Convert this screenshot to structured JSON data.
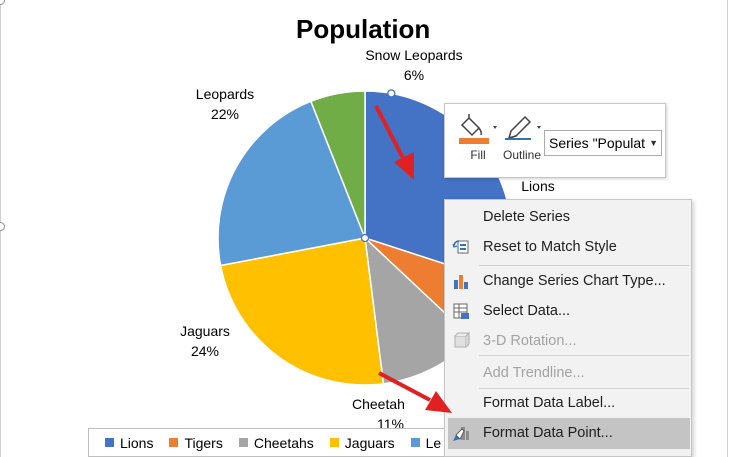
{
  "chart_data": {
    "type": "pie",
    "title": "Population",
    "categories": [
      "Lions",
      "Tigers",
      "Cheetahs",
      "Jaguars",
      "Leopards",
      "Snow Leopards"
    ],
    "values": [
      30,
      7,
      11,
      24,
      22,
      6
    ],
    "value_unit": "%",
    "colors": [
      "#4472C4",
      "#ED7D31",
      "#A5A5A5",
      "#FFC000",
      "#5B9BD5",
      "#70AD47"
    ],
    "data_labels": {
      "lions": "Lions",
      "cheetahs": "Cheetah",
      "cheetahs_pct": "11%",
      "jaguars": "Jaguars",
      "jaguars_pct": "24%",
      "leopards": "Leopards",
      "leopards_pct": "22%",
      "snow": "Snow Leopards",
      "snow_pct": "6%"
    },
    "legend": {
      "placement": "bottom",
      "items": [
        "Lions",
        "Tigers",
        "Cheetahs",
        "Jaguars",
        "Le"
      ]
    }
  },
  "mini_toolbar": {
    "fill_label": "Fill",
    "outline_label": "Outline",
    "series_select_value": "Series \"Populat"
  },
  "context_menu": {
    "items": [
      {
        "label": "Delete Series",
        "icon": "none",
        "enabled": true
      },
      {
        "label": "Reset to Match Style",
        "icon": "reset-style-icon",
        "enabled": true
      },
      {
        "label": "Change Series Chart Type...",
        "icon": "chart-type-icon",
        "enabled": true
      },
      {
        "label": "Select Data...",
        "icon": "select-data-icon",
        "enabled": true
      },
      {
        "label": "3-D Rotation...",
        "icon": "3d-rotation-icon",
        "enabled": false
      },
      {
        "label": "Add Trendline...",
        "icon": "none",
        "enabled": false
      },
      {
        "label": "Format Data Label...",
        "icon": "none",
        "enabled": true
      },
      {
        "label": "Format Data Point...",
        "icon": "format-data-point-icon",
        "enabled": true,
        "selected": true
      }
    ]
  }
}
